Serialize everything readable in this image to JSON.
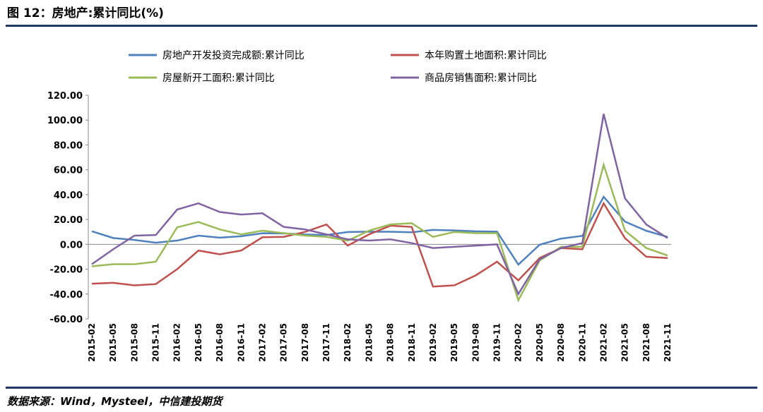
{
  "chart_data": {
    "type": "line",
    "title": "图 12：房地产:累计同比(%)",
    "source": "数据来源：Wind，Mysteel，中信建投期货",
    "categories": [
      "2015-02",
      "2015-05",
      "2015-08",
      "2015-11",
      "2016-02",
      "2016-05",
      "2016-08",
      "2016-11",
      "2017-02",
      "2017-05",
      "2017-08",
      "2017-11",
      "2018-02",
      "2018-05",
      "2018-08",
      "2018-11",
      "2019-02",
      "2019-05",
      "2019-08",
      "2019-11",
      "2020-02",
      "2020-05",
      "2020-08",
      "2020-11",
      "2021-02",
      "2021-05",
      "2021-08",
      "2021-11"
    ],
    "series": [
      {
        "name": "房地产开发投资完成额:累计同比",
        "color": "#4f81bd",
        "values": [
          10.5,
          5.1,
          3.5,
          1.3,
          3,
          7,
          5.4,
          6.5,
          8.9,
          8.8,
          7.9,
          7.5,
          9.9,
          10.2,
          10.1,
          9.7,
          11.6,
          11.2,
          10.5,
          10.2,
          -16.3,
          -0.3,
          4.6,
          6.8,
          38.3,
          18.3,
          10.9,
          6
        ]
      },
      {
        "name": "本年购置土地面积:累计同比",
        "color": "#c0504d",
        "values": [
          -31.7,
          -31,
          -33,
          -32,
          -20,
          -5,
          -8,
          -5,
          5.7,
          6,
          10,
          16,
          -1,
          8,
          15,
          14,
          -34,
          -33,
          -25,
          -14,
          -29,
          -11,
          -3,
          -4,
          33,
          5,
          -10,
          -11
        ]
      },
      {
        "name": "房屋新开工面积:累计同比",
        "color": "#9bbb59",
        "values": [
          -17.7,
          -16,
          -16,
          -14,
          13.7,
          18,
          12,
          8,
          11,
          9,
          7,
          6,
          3,
          11,
          16,
          17,
          6,
          10,
          9,
          9,
          -45,
          -13,
          -2,
          -2,
          64,
          11,
          -3,
          -9
        ]
      },
      {
        "name": "商品房销售面积:累计同比",
        "color": "#8064a2",
        "values": [
          -16,
          -4,
          7,
          7.5,
          28,
          33,
          26,
          24,
          25,
          14,
          12,
          8,
          4,
          3,
          4,
          1,
          -3,
          -2,
          -1,
          0,
          -40,
          -12,
          -3,
          1,
          105,
          37,
          16,
          5
        ]
      }
    ],
    "ylim": [
      -60,
      120
    ],
    "yticks": [
      {
        "value": -60,
        "label": "-60.00"
      },
      {
        "value": -40,
        "label": "-40.00"
      },
      {
        "value": -20,
        "label": "-20.00"
      },
      {
        "value": 0,
        "label": "0.00"
      },
      {
        "value": 20,
        "label": "20.00"
      },
      {
        "value": 40,
        "label": "40.00"
      },
      {
        "value": 60,
        "label": "60.00"
      },
      {
        "value": 80,
        "label": "80.00"
      },
      {
        "value": 100,
        "label": "100.00"
      },
      {
        "value": 120,
        "label": "120.00"
      }
    ]
  }
}
